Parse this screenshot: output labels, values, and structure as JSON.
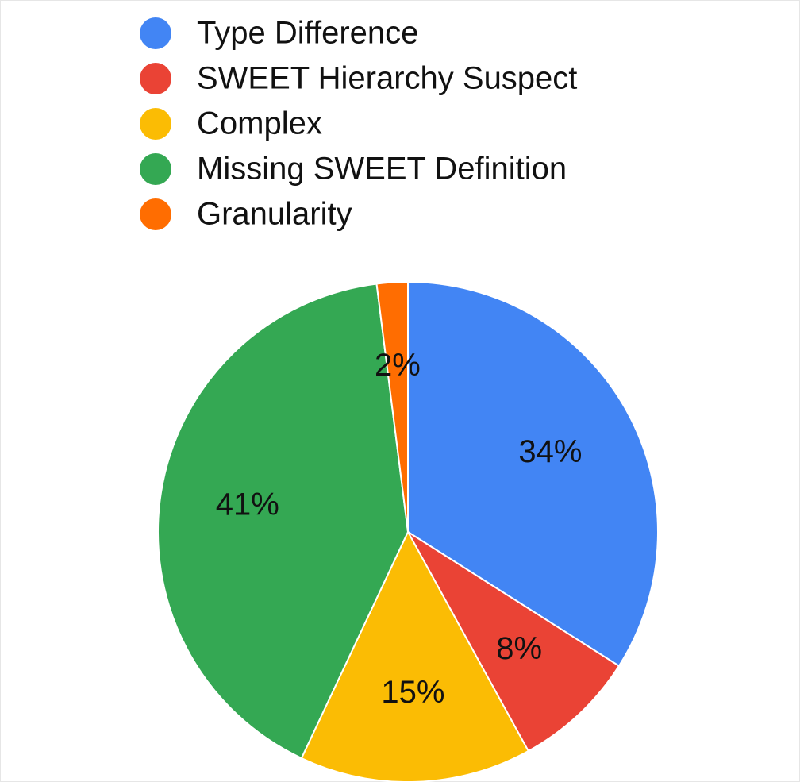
{
  "chart_data": {
    "type": "pie",
    "categories": [
      "Type Difference",
      "SWEET Hierarchy Suspect",
      "Complex",
      "Missing SWEET Definition",
      "Granularity"
    ],
    "values": [
      34,
      8,
      15,
      41,
      2
    ],
    "value_labels": [
      "34%",
      "8%",
      "15%",
      "41%",
      "2%"
    ],
    "colors": [
      "#4285f4",
      "#ea4335",
      "#fbbc04",
      "#34a853",
      "#ff6d01"
    ],
    "legend": "top"
  }
}
